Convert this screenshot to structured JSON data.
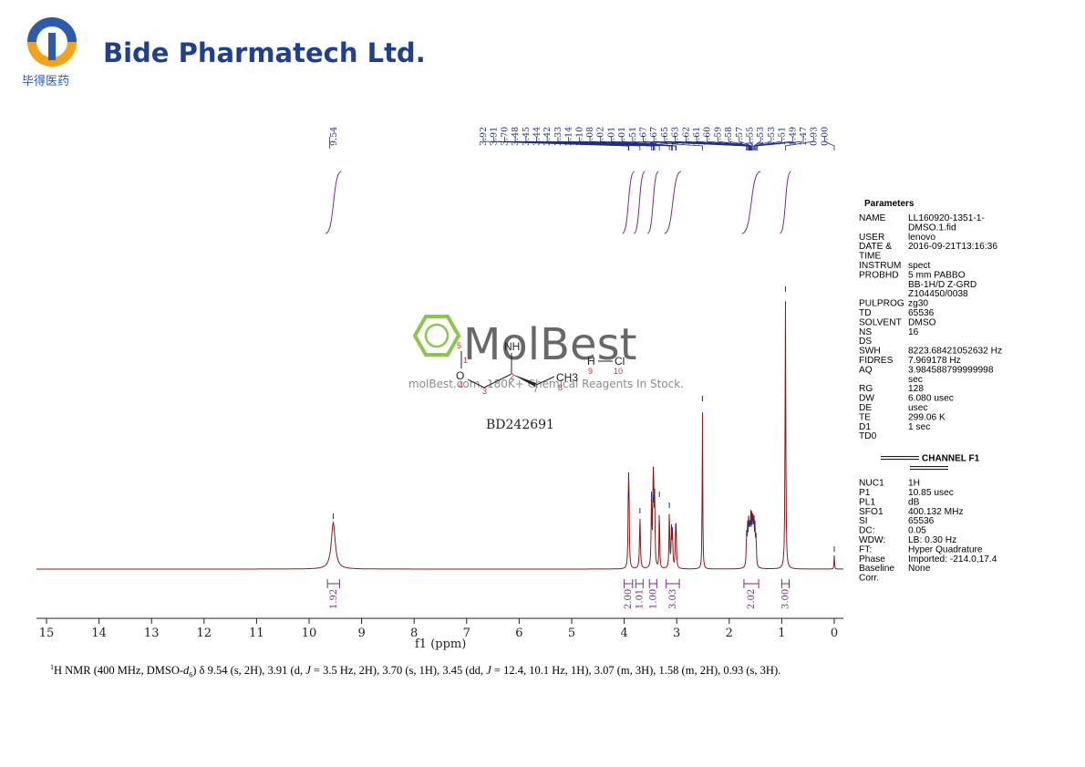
{
  "brand": {
    "name": "Bide Pharmatech Ltd.",
    "name_cn": "毕得医药",
    "colors": {
      "blue": "#1f3f8f",
      "orange": "#f2a21b"
    }
  },
  "watermark": {
    "name": "MolBest",
    "tagline": "molBest.com, 180K+ Chemical Reagents In Stock.",
    "color": "#77bd2a"
  },
  "compound_id": "BD242691",
  "structure_labels": {
    "atoms": [
      "NH",
      "O",
      "CH3",
      "H",
      "Cl"
    ],
    "numbers": [
      "5",
      "1",
      "2",
      "3",
      "4",
      "7",
      "8",
      "9",
      "10"
    ]
  },
  "parameters": {
    "title": "Parameters",
    "rows": [
      [
        "NAME",
        "LL160920-1351-1-"
      ],
      [
        "",
        "DMSO.1.fid"
      ],
      [
        "USER",
        "lenovo"
      ],
      [
        "DATE &",
        "2016-09-21T13:16:36"
      ],
      [
        "TIME",
        ""
      ],
      [
        "INSTRUM",
        "spect"
      ],
      [
        "PROBHD",
        "5 mm PABBO"
      ],
      [
        "",
        "BB-1H/D Z-GRD"
      ],
      [
        "",
        "Z104450/0038"
      ],
      [
        "PULPROG",
        "zg30"
      ],
      [
        "TD",
        "65536"
      ],
      [
        "SOLVENT",
        "DMSO"
      ],
      [
        "NS",
        "16"
      ],
      [
        "DS",
        ""
      ],
      [
        "SWH",
        "8223.68421052632 Hz"
      ],
      [
        "FIDRES",
        "7.969178 Hz"
      ],
      [
        "AQ",
        "3.984588799999998"
      ],
      [
        "",
        "sec"
      ],
      [
        "RG",
        "128"
      ],
      [
        "DW",
        "6.080 usec"
      ],
      [
        "DE",
        "usec"
      ],
      [
        "TE",
        "299.06 K"
      ],
      [
        "D1",
        "1 sec"
      ],
      [
        "TD0",
        ""
      ]
    ],
    "channel_title": "CHANNEL F1",
    "channel_rows": [
      [
        "NUC1",
        "1H"
      ],
      [
        "P1",
        "10.85 usec"
      ],
      [
        "PL1",
        "dB"
      ],
      [
        "SFO1",
        "400.132 MHz"
      ],
      [
        "SI",
        "65536"
      ],
      [
        "DC:",
        "0.05"
      ],
      [
        "WDW:",
        "LB: 0.30 Hz"
      ],
      [
        "FT:",
        "Hyper Quadrature"
      ],
      [
        "Phase",
        "Imported: -214.0,17.4"
      ],
      [
        "Baseline",
        "None"
      ],
      [
        "Corr.",
        ""
      ]
    ]
  },
  "caption": {
    "nucleus_sup": "1",
    "prefix": "H NMR (400 MHz, DMSO-",
    "solvent_italic": "d",
    "solvent_sub": "6",
    "after_solvent": ") δ 9.54 (s, 2H), 3.91 (d, ",
    "j1": "J",
    "mid1": " = 3.5 Hz, 2H), 3.70 (s, 1H), 3.45 (dd, ",
    "j2": "J",
    "mid2": " = 12.4, 10.1 Hz, 1H), 3.07 (m, 3H), 1.58 (m, 2H), 0.93 (s, 3H)."
  },
  "chart_data": {
    "type": "line",
    "title": "",
    "xlabel": "f1 (ppm)",
    "ylabel": "",
    "xlim": [
      15.5,
      -0.2
    ],
    "x_reversed": true,
    "x_ticks": [
      "15",
      "14",
      "13",
      "12",
      "11",
      "10",
      "9",
      "8",
      "7",
      "6",
      "5",
      "4",
      "3",
      "2",
      "1",
      "0"
    ],
    "colors": {
      "spectrum": "#8b1a1a",
      "peak_labels": "#1c2f8a",
      "integrals": "#7a2a86"
    },
    "peak_labels_left": [
      "9.54"
    ],
    "peak_labels_mid": [
      "3.92",
      "3.91",
      "3.70",
      "3.48",
      "3.45",
      "3.44",
      "3.42",
      "3.33",
      "3.14",
      "3.10",
      "3.08",
      "3.02",
      "3.01",
      "3.01",
      "2.51",
      "1.67",
      "1.67",
      "1.65",
      "1.63",
      "1.62",
      "1.61",
      "1.60",
      "1.59",
      "1.58",
      "1.57",
      "1.55",
      "1.53",
      "1.53",
      "1.51",
      "1.49",
      "1.47",
      "0.93",
      "0.00"
    ],
    "peaks": [
      {
        "ppm": 9.54,
        "height": 0.17,
        "width": 0.045
      },
      {
        "ppm": 3.92,
        "height": 0.24,
        "width": 0.008
      },
      {
        "ppm": 3.91,
        "height": 0.25,
        "width": 0.008
      },
      {
        "ppm": 3.7,
        "height": 0.19,
        "width": 0.01
      },
      {
        "ppm": 3.48,
        "height": 0.25,
        "width": 0.008
      },
      {
        "ppm": 3.45,
        "height": 0.24,
        "width": 0.008
      },
      {
        "ppm": 3.44,
        "height": 0.23,
        "width": 0.008
      },
      {
        "ppm": 3.42,
        "height": 0.24,
        "width": 0.008
      },
      {
        "ppm": 3.33,
        "height": 0.25,
        "width": 0.006
      },
      {
        "ppm": 3.14,
        "height": 0.21,
        "width": 0.008
      },
      {
        "ppm": 3.1,
        "height": 0.13,
        "width": 0.008
      },
      {
        "ppm": 3.08,
        "height": 0.12,
        "width": 0.008
      },
      {
        "ppm": 3.02,
        "height": 0.12,
        "width": 0.008
      },
      {
        "ppm": 3.01,
        "height": 0.11,
        "width": 0.008
      },
      {
        "ppm": 2.51,
        "height": 0.6,
        "width": 0.006
      },
      {
        "ppm": 1.67,
        "height": 0.11,
        "width": 0.008
      },
      {
        "ppm": 1.65,
        "height": 0.13,
        "width": 0.008
      },
      {
        "ppm": 1.63,
        "height": 0.15,
        "width": 0.008
      },
      {
        "ppm": 1.61,
        "height": 0.14,
        "width": 0.008
      },
      {
        "ppm": 1.59,
        "height": 0.16,
        "width": 0.008
      },
      {
        "ppm": 1.57,
        "height": 0.15,
        "width": 0.008
      },
      {
        "ppm": 1.55,
        "height": 0.17,
        "width": 0.008
      },
      {
        "ppm": 1.53,
        "height": 0.15,
        "width": 0.008
      },
      {
        "ppm": 1.51,
        "height": 0.13,
        "width": 0.008
      },
      {
        "ppm": 1.49,
        "height": 0.1,
        "width": 0.008
      },
      {
        "ppm": 0.93,
        "height": 1.0,
        "width": 0.008
      },
      {
        "ppm": 0.0,
        "height": 0.05,
        "width": 0.006
      }
    ],
    "integrals": [
      {
        "from": 9.65,
        "to": 9.42,
        "value": "1.92"
      },
      {
        "from": 4.0,
        "to": 3.84,
        "value": "2.00"
      },
      {
        "from": 3.78,
        "to": 3.64,
        "value": "1.01"
      },
      {
        "from": 3.52,
        "to": 3.38,
        "value": "1.00"
      },
      {
        "from": 3.2,
        "to": 2.95,
        "value": "3.03"
      },
      {
        "from": 1.72,
        "to": 1.44,
        "value": "2.02"
      },
      {
        "from": 1.0,
        "to": 0.86,
        "value": "3.00"
      }
    ]
  }
}
